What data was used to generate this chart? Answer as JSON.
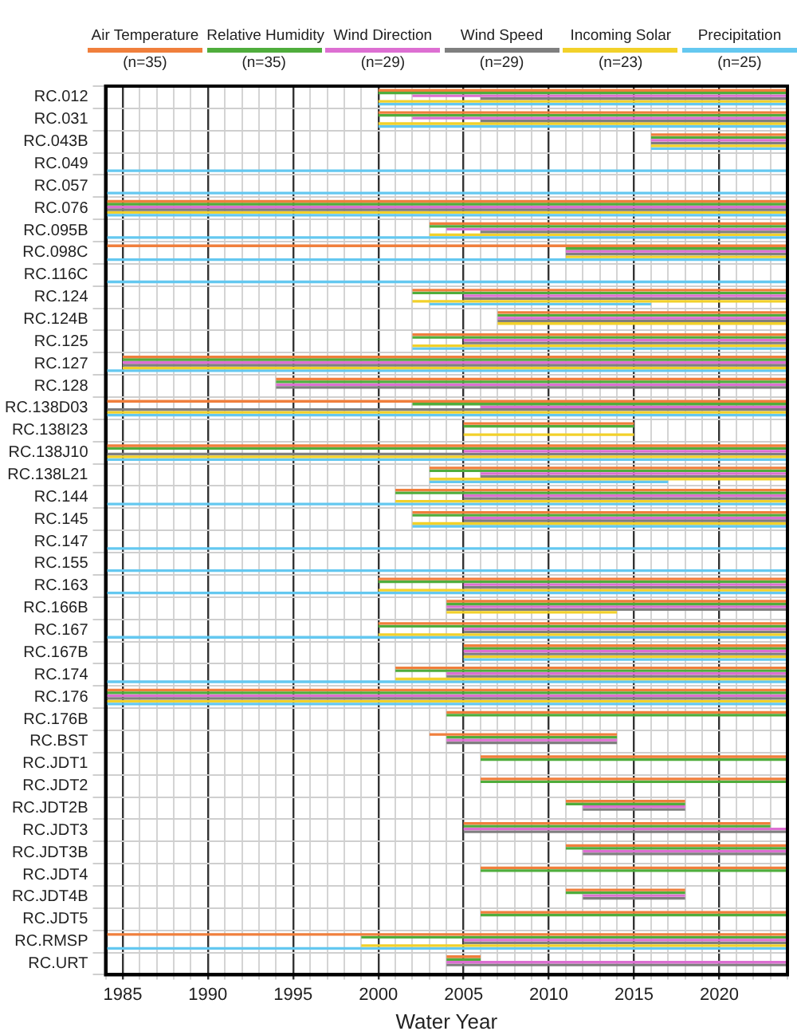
{
  "chart_data": {
    "type": "bar",
    "orientation": "horizontal",
    "xlabel": "Water Year",
    "legend": "top",
    "grid": true,
    "categories": [
      "RC.012",
      "RC.031",
      "RC.043B",
      "RC.049",
      "RC.057",
      "RC.076",
      "RC.095B",
      "RC.098C",
      "RC.116C",
      "RC.124",
      "RC.124B",
      "RC.125",
      "RC.127",
      "RC.128",
      "RC.138D03",
      "RC.138I23",
      "RC.138J10",
      "RC.138L21",
      "RC.144",
      "RC.145",
      "RC.147",
      "RC.155",
      "RC.163",
      "RC.166B",
      "RC.167",
      "RC.167B",
      "RC.174",
      "RC.176",
      "RC.176B",
      "RC.BST",
      "RC.JDT1",
      "RC.JDT2",
      "RC.JDT2B",
      "RC.JDT3",
      "RC.JDT3B",
      "RC.JDT4",
      "RC.JDT4B",
      "RC.JDT5",
      "RC.RMSP",
      "RC.URT"
    ],
    "xlim": [
      1984,
      2024
    ],
    "xticks": [
      {
        "value": 1984,
        "label": null
      },
      1985,
      {
        "value": 1986,
        "label": null
      },
      {
        "value": 1987,
        "label": null
      },
      {
        "value": 1988,
        "label": null
      },
      {
        "value": 1989,
        "label": null
      },
      1990,
      {
        "value": 1991,
        "label": null
      },
      {
        "value": 1992,
        "label": null
      },
      {
        "value": 1993,
        "label": null
      },
      {
        "value": 1994,
        "label": null
      },
      1995,
      {
        "value": 1996,
        "label": null
      },
      {
        "value": 1997,
        "label": null
      },
      {
        "value": 1998,
        "label": null
      },
      {
        "value": 1999,
        "label": null
      },
      2000,
      {
        "value": 2001,
        "label": null
      },
      {
        "value": 2002,
        "label": null
      },
      {
        "value": 2003,
        "label": null
      },
      {
        "value": 2004,
        "label": null
      },
      2005,
      {
        "value": 2006,
        "label": null
      },
      {
        "value": 2007,
        "label": null
      },
      {
        "value": 2008,
        "label": null
      },
      {
        "value": 2009,
        "label": null
      },
      2010,
      {
        "value": 2011,
        "label": null
      },
      {
        "value": 2012,
        "label": null
      },
      {
        "value": 2013,
        "label": null
      },
      {
        "value": 2014,
        "label": null
      },
      2015,
      {
        "value": 2016,
        "label": null
      },
      {
        "value": 2017,
        "label": null
      },
      {
        "value": 2018,
        "label": null
      },
      {
        "value": 2019,
        "label": null
      },
      2020,
      {
        "value": 2021,
        "label": null
      },
      {
        "value": 2022,
        "label": null
      },
      {
        "value": 2023,
        "label": null
      },
      {
        "value": 2024,
        "label": null
      }
    ],
    "series": [
      {
        "name": "Air Temperature (n=35)",
        "color": "#f07f3c",
        "base": [
          2000,
          2000,
          2016,
          null,
          null,
          1984,
          2003,
          1984,
          null,
          2002,
          2007,
          2002,
          1985,
          1994,
          1984,
          2005,
          1984,
          2003,
          2001,
          2002,
          null,
          null,
          2000,
          2004,
          2000,
          2005,
          2001,
          1984,
          2004,
          2003,
          2006,
          2006,
          2011,
          2005,
          2011,
          2006,
          2011,
          2006,
          1984,
          2004
        ],
        "values": [
          24,
          24,
          8,
          null,
          null,
          40,
          21,
          40,
          null,
          22,
          17,
          22,
          39,
          30,
          40,
          10,
          40,
          21,
          23,
          22,
          null,
          null,
          24,
          20,
          24,
          19,
          23,
          40,
          20,
          11,
          18,
          18,
          7,
          18,
          13,
          18,
          7,
          18,
          40,
          2
        ]
      },
      {
        "name": "Relative Humidity (n=35)",
        "color": "#4fad3c",
        "base": [
          2000,
          2000,
          2016,
          null,
          null,
          1984,
          2003,
          2011,
          null,
          2002,
          2007,
          2002,
          1985,
          1994,
          2002,
          2005,
          1984,
          2003,
          2001,
          2002,
          null,
          null,
          2000,
          2004,
          2000,
          2005,
          2001,
          1984,
          2004,
          2004,
          2006,
          2006,
          2011,
          2005,
          2011,
          2006,
          2011,
          2006,
          1999,
          2004
        ],
        "values": [
          24,
          24,
          8,
          null,
          null,
          40,
          21,
          13,
          null,
          22,
          17,
          22,
          39,
          30,
          22,
          10,
          40,
          21,
          23,
          22,
          null,
          null,
          24,
          20,
          24,
          19,
          23,
          40,
          20,
          10,
          18,
          18,
          7,
          18,
          13,
          18,
          7,
          18,
          25,
          2
        ]
      },
      {
        "name": "Wind Direction (n=29)",
        "color": "#dd6fd2",
        "base": [
          2002,
          2002,
          2016,
          null,
          null,
          1984,
          2004,
          2011,
          null,
          2005,
          2007,
          2005,
          1985,
          1994,
          2006,
          null,
          2005,
          2006,
          2005,
          2005,
          null,
          null,
          2005,
          2004,
          2005,
          2005,
          2004,
          1984,
          null,
          2004,
          null,
          null,
          2012,
          2005,
          2012,
          null,
          2012,
          null,
          2005,
          2004
        ],
        "values": [
          22,
          22,
          8,
          null,
          null,
          40,
          20,
          13,
          null,
          19,
          17,
          19,
          39,
          30,
          18,
          null,
          19,
          18,
          19,
          19,
          null,
          null,
          19,
          20,
          19,
          19,
          20,
          40,
          null,
          10,
          null,
          null,
          6,
          19,
          12,
          null,
          6,
          null,
          19,
          20
        ]
      },
      {
        "name": "Wind Speed (n=29)",
        "color": "#7f7f7f",
        "base": [
          2006,
          2006,
          2016,
          null,
          null,
          1984,
          2006,
          2011,
          null,
          2005,
          2007,
          2005,
          1985,
          1994,
          1984,
          null,
          1984,
          2006,
          2005,
          2005,
          null,
          null,
          2005,
          2004,
          2005,
          2005,
          2004,
          1984,
          null,
          2004,
          null,
          null,
          2012,
          2005,
          2012,
          null,
          2012,
          null,
          2005,
          2004
        ],
        "values": [
          18,
          18,
          8,
          null,
          null,
          40,
          18,
          13,
          null,
          19,
          17,
          19,
          39,
          30,
          40,
          null,
          40,
          18,
          19,
          19,
          null,
          null,
          19,
          20,
          19,
          19,
          20,
          40,
          null,
          10,
          null,
          null,
          6,
          19,
          12,
          null,
          6,
          null,
          19,
          20
        ]
      },
      {
        "name": "Incoming Solar (n=23)",
        "color": "#f2d12a",
        "base": [
          2000,
          2000,
          2016,
          null,
          null,
          1984,
          2003,
          2011,
          null,
          2002,
          2007,
          2002,
          1985,
          null,
          1984,
          2005,
          1984,
          2003,
          2001,
          2002,
          null,
          null,
          2000,
          2004,
          2000,
          2005,
          2001,
          1984,
          null,
          null,
          null,
          null,
          null,
          null,
          null,
          null,
          null,
          null,
          1999,
          null
        ],
        "values": [
          24,
          24,
          8,
          null,
          null,
          40,
          21,
          13,
          null,
          22,
          17,
          22,
          39,
          null,
          40,
          10,
          40,
          21,
          23,
          22,
          null,
          null,
          24,
          10,
          24,
          19,
          23,
          40,
          null,
          null,
          null,
          null,
          null,
          null,
          null,
          null,
          null,
          null,
          25,
          null
        ]
      },
      {
        "name": "Precipitation (n=25)",
        "color": "#64c8f0",
        "base": [
          2000,
          2000,
          2016,
          1984,
          1984,
          1984,
          1984,
          1984,
          1984,
          2003,
          null,
          2002,
          1984,
          null,
          1984,
          null,
          1984,
          2003,
          1984,
          2002,
          1984,
          1984,
          1984,
          null,
          1984,
          2005,
          1984,
          1984,
          null,
          null,
          null,
          null,
          null,
          null,
          null,
          null,
          null,
          null,
          1984,
          null
        ],
        "values": [
          24,
          24,
          8,
          40,
          40,
          40,
          40,
          40,
          40,
          13,
          null,
          22,
          40,
          null,
          40,
          null,
          40,
          14,
          40,
          22,
          40,
          40,
          40,
          null,
          40,
          19,
          40,
          40,
          null,
          null,
          null,
          null,
          null,
          null,
          null,
          null,
          null,
          null,
          40,
          null
        ]
      }
    ]
  }
}
